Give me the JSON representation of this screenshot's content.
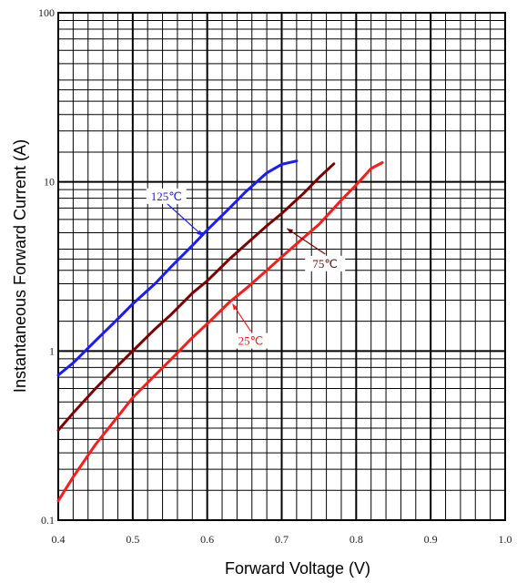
{
  "chart_data": {
    "type": "line",
    "title": "",
    "xlabel": "Forward Voltage (V)",
    "ylabel": "Instantaneous Forward Current (A)",
    "xlim": [
      0.4,
      1.0
    ],
    "ylim": [
      0.1,
      100
    ],
    "yscale": "log",
    "grid": true,
    "x_ticks": [
      "0.4",
      "0.5",
      "0.6",
      "0.7",
      "0.8",
      "0.9",
      "1.0"
    ],
    "y_ticks": [
      "0.1",
      "1",
      "10",
      "100"
    ],
    "series": [
      {
        "name": "125℃",
        "color": "#1a1aff",
        "x": [
          0.4,
          0.42,
          0.45,
          0.48,
          0.5,
          0.53,
          0.55,
          0.58,
          0.6,
          0.63,
          0.65,
          0.68,
          0.7,
          0.72
        ],
        "y": [
          0.72,
          0.85,
          1.15,
          1.55,
          1.9,
          2.5,
          3.1,
          4.2,
          5.2,
          7.0,
          8.6,
          11.3,
          12.7,
          13.3
        ]
      },
      {
        "name": "75℃",
        "color": "#800000",
        "x": [
          0.4,
          0.42,
          0.45,
          0.48,
          0.5,
          0.53,
          0.55,
          0.58,
          0.6,
          0.63,
          0.65,
          0.68,
          0.7,
          0.73,
          0.75,
          0.77
        ],
        "y": [
          0.34,
          0.43,
          0.6,
          0.82,
          1.0,
          1.35,
          1.62,
          2.2,
          2.6,
          3.5,
          4.2,
          5.5,
          6.5,
          8.6,
          10.6,
          12.8
        ]
      },
      {
        "name": "25℃",
        "color": "#ff1a1a",
        "x": [
          0.4,
          0.42,
          0.45,
          0.48,
          0.5,
          0.53,
          0.55,
          0.58,
          0.6,
          0.63,
          0.65,
          0.68,
          0.7,
          0.73,
          0.75,
          0.78,
          0.8,
          0.82,
          0.835
        ],
        "y": [
          0.13,
          0.18,
          0.28,
          0.41,
          0.53,
          0.72,
          0.88,
          1.2,
          1.45,
          1.95,
          2.3,
          3.0,
          3.6,
          4.7,
          5.6,
          7.8,
          9.6,
          12.0,
          13.0
        ]
      }
    ],
    "annotations": [
      {
        "text": "125℃",
        "series": "125℃",
        "point_x": 0.594,
        "point_y": 4.8
      },
      {
        "text": "75℃",
        "series": "75℃",
        "point_x": 0.707,
        "point_y": 5.3
      },
      {
        "text": "25℃",
        "series": "25℃",
        "point_x": 0.634,
        "point_y": 1.9
      }
    ]
  }
}
